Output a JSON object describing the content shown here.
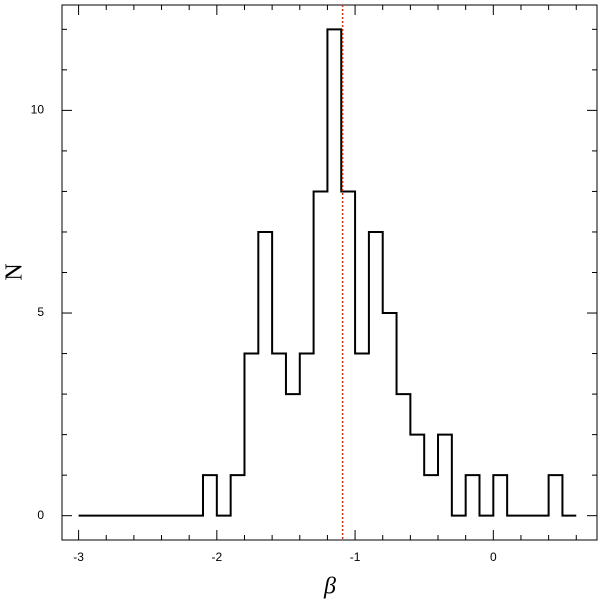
{
  "chart_data": {
    "type": "histogram",
    "xlabel": "β",
    "ylabel": "N",
    "bins": [
      -3,
      -2.9,
      -2.8,
      -2.7,
      -2.6,
      -2.5,
      -2.4,
      -2.3,
      -2.2,
      -2.1,
      -2,
      -1.9,
      -1.8,
      -1.7,
      -1.6,
      -1.5,
      -1.4,
      -1.3,
      -1.2,
      -1.1,
      -1,
      -0.9,
      -0.8,
      -0.7,
      -0.6,
      -0.5,
      -0.4,
      -0.3,
      -0.2,
      -0.1,
      0,
      0.1,
      0.2,
      0.3,
      0.4,
      0.5,
      0.6
    ],
    "values": [
      0,
      0,
      0,
      0,
      0,
      0,
      0,
      0,
      0,
      1,
      0,
      1,
      4,
      7,
      4,
      3,
      4,
      8,
      12,
      8,
      4,
      7,
      5,
      3,
      2,
      1,
      2,
      0,
      1,
      0,
      1,
      0,
      0,
      0,
      1,
      0
    ],
    "color": "#000000",
    "vline": -1.09,
    "vline_color": "#cc3311",
    "xlim": [
      -3.12,
      0.75
    ],
    "xticks": [
      -3,
      -2,
      -1,
      0
    ],
    "xminorticks": [
      -2.8,
      -2.6,
      -2.4,
      -2.2,
      -1.8,
      -1.6,
      -1.4,
      -1.2,
      -0.8,
      -0.6,
      -0.4,
      -0.2,
      0.2,
      0.4,
      0.6
    ],
    "ylim": [
      -0.6,
      12.6
    ],
    "yticks": [
      0,
      5,
      10
    ],
    "yminorticks": [
      1,
      2,
      3,
      4,
      6,
      7,
      8,
      9,
      11,
      12
    ]
  }
}
